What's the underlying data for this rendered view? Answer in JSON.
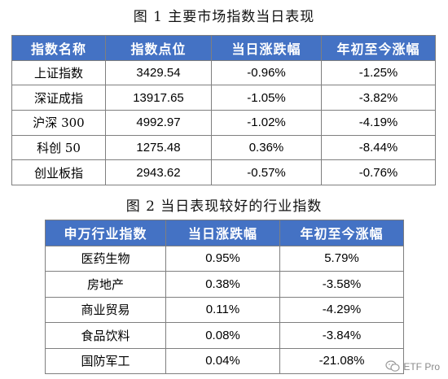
{
  "caption1": "图 1 主要市场指数当日表现",
  "table1": {
    "headers": [
      "指数名称",
      "指数点位",
      "当日涨跌幅",
      "年初至今涨幅"
    ],
    "rows": [
      [
        "上证指数",
        "3429.54",
        "-0.96%",
        "-1.25%"
      ],
      [
        "深证成指",
        "13917.65",
        "-1.05%",
        "-3.82%"
      ],
      [
        "沪深 300",
        "4992.97",
        "-1.02%",
        "-4.19%"
      ],
      [
        "科创 50",
        "1275.48",
        "0.36%",
        "-8.44%"
      ],
      [
        "创业板指",
        "2943.62",
        "-0.57%",
        "-0.76%"
      ]
    ]
  },
  "caption2": "图 2 当日表现较好的行业指数",
  "table2": {
    "headers": [
      "申万行业指数",
      "当日涨跌幅",
      "年初至今涨幅"
    ],
    "rows": [
      [
        "医药生物",
        "0.95%",
        "5.79%"
      ],
      [
        "房地产",
        "0.38%",
        "-3.58%"
      ],
      [
        "商业贸易",
        "0.11%",
        "-4.29%"
      ],
      [
        "食品饮料",
        "0.08%",
        "-3.84%"
      ],
      [
        "国防军工",
        "0.04%",
        "-21.08%"
      ]
    ]
  },
  "watermark": {
    "icon": "wechat-icon",
    "text": "ETF Pro"
  },
  "colors": {
    "header_bg": "#4472c4",
    "header_text": "#ffffff",
    "border": "#7f7f7f"
  }
}
